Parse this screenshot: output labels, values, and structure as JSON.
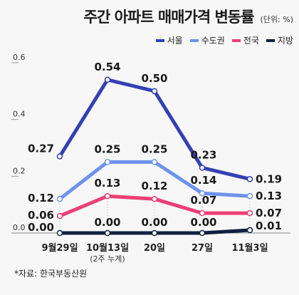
{
  "title": "주간 아파트 매매가격 변동률",
  "unit": "(단위: %)",
  "source": "*자료: 한국부동산원",
  "chart_data": {
    "type": "line",
    "categories": [
      "9월29일",
      "10월13일",
      "20일",
      "27일",
      "11월3일"
    ],
    "category_notes": [
      "",
      "(2주 누계)",
      "",
      "",
      ""
    ],
    "y_ticks": [
      "0.0",
      "0.2",
      "0.4",
      "0.6"
    ],
    "ylim": [
      0,
      0.6
    ],
    "grid": false,
    "legend_position": "top-right",
    "series": [
      {
        "name": "서울",
        "color": "#3340b5",
        "values": [
          0.27,
          0.54,
          0.5,
          0.23,
          0.19
        ],
        "labels": [
          "0.27",
          "0.54",
          "0.50",
          "0.23",
          "0.19"
        ]
      },
      {
        "name": "수도권",
        "color": "#6e93ec",
        "values": [
          0.12,
          0.25,
          0.25,
          0.14,
          0.13
        ],
        "labels": [
          "0.12",
          "0.25",
          "0.25",
          "0.14",
          "0.13"
        ]
      },
      {
        "name": "전국",
        "color": "#ec3f76",
        "values": [
          0.06,
          0.13,
          0.12,
          0.07,
          0.07
        ],
        "labels": [
          "0.06",
          "0.13",
          "0.12",
          "0.07",
          "0.07"
        ]
      },
      {
        "name": "지방",
        "color": "#102040",
        "values": [
          0.0,
          0.0,
          0.0,
          0.0,
          0.01
        ],
        "labels": [
          "0.00",
          "0.00",
          "0.00",
          "0.00",
          "0.01"
        ]
      }
    ]
  }
}
